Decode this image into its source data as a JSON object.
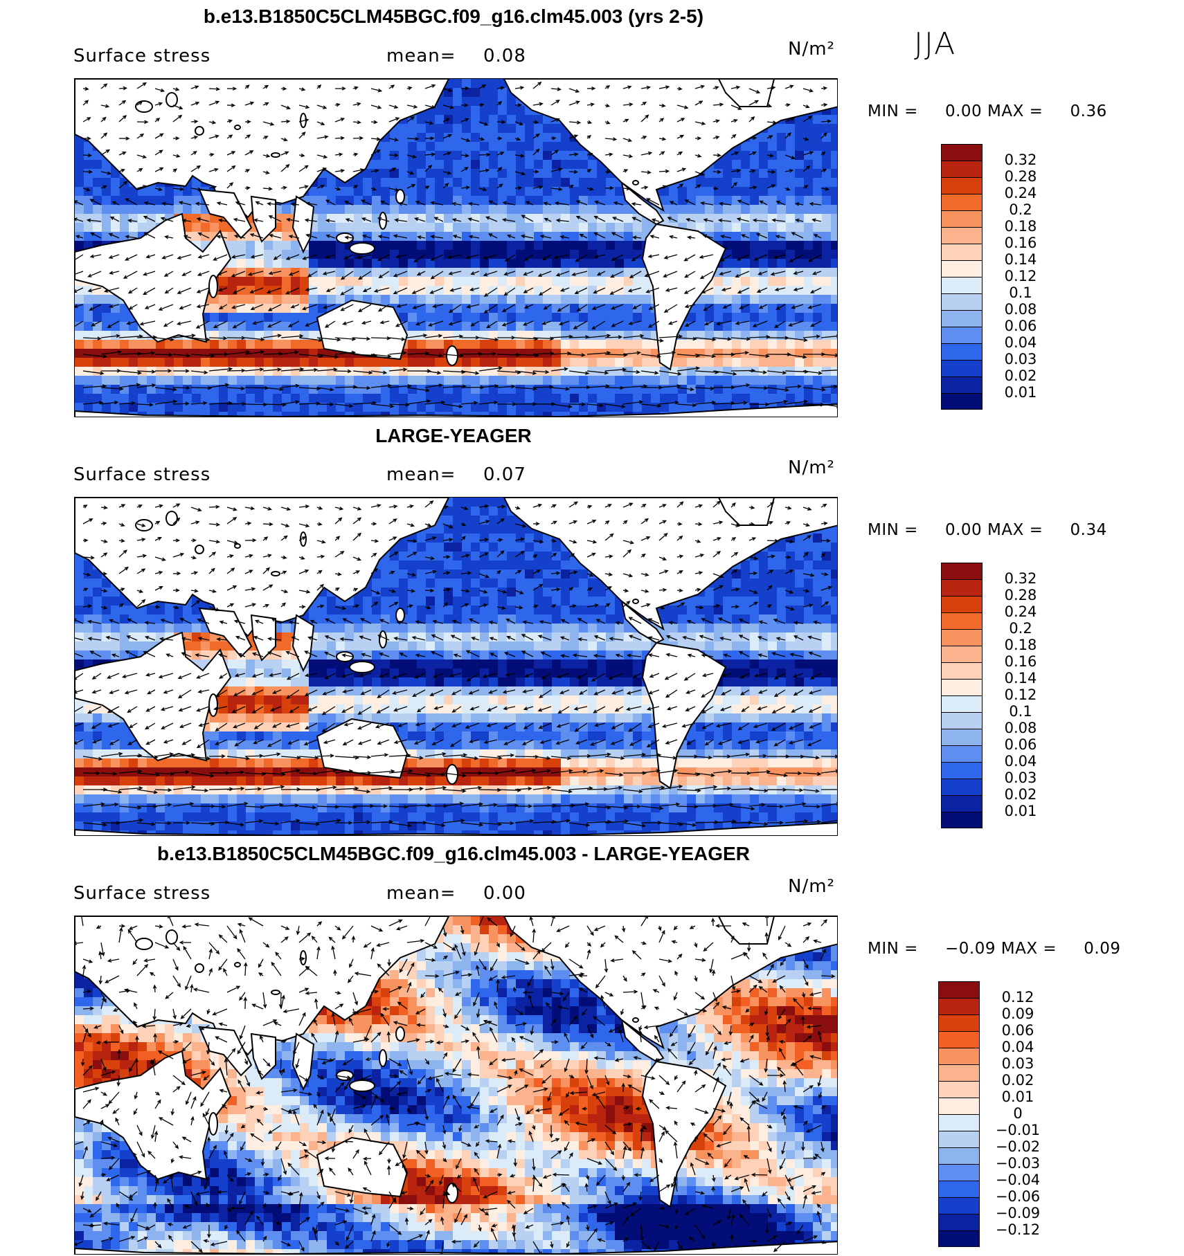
{
  "figure": {
    "season": "JJA",
    "land_color": "#ffffff"
  },
  "panels": [
    {
      "id": "model",
      "title": "b.e13.B1850C5CLM45BGC.f09_g16.clm45.003 (yrs 2-5)",
      "variable": "Surface stress",
      "mean_label": "mean=",
      "mean_value": "0.08",
      "units": "N/m²",
      "min_label": "MIN =",
      "min_value": "0.00",
      "max_label": "MAX =",
      "max_value": "0.36",
      "colorbar": {
        "ticks": [
          "0.32",
          "0.28",
          "0.24",
          "0.2",
          "0.18",
          "0.16",
          "0.14",
          "0.12",
          "0.1",
          "0.08",
          "0.06",
          "0.04",
          "0.03",
          "0.02",
          "0.01"
        ],
        "colors": [
          "#8b0e0e",
          "#b82410",
          "#d8400c",
          "#f06a2a",
          "#f8925e",
          "#fbb38d",
          "#fdd2b9",
          "#fdeee1",
          "#dcebf8",
          "#b8d1f3",
          "#8db4ee",
          "#5e8ff0",
          "#2e66ec",
          "#1440cc",
          "#0b22a3",
          "#020d78"
        ]
      }
    },
    {
      "id": "obs",
      "title": "LARGE-YEAGER",
      "variable": "Surface stress",
      "mean_label": "mean=",
      "mean_value": "0.07",
      "units": "N/m²",
      "min_label": "MIN =",
      "min_value": "0.00",
      "max_label": "MAX =",
      "max_value": "0.34",
      "colorbar": {
        "ticks": [
          "0.32",
          "0.28",
          "0.24",
          "0.2",
          "0.18",
          "0.16",
          "0.14",
          "0.12",
          "0.1",
          "0.08",
          "0.06",
          "0.04",
          "0.03",
          "0.02",
          "0.01"
        ],
        "colors": [
          "#8b0e0e",
          "#b82410",
          "#d8400c",
          "#f06a2a",
          "#f8925e",
          "#fbb38d",
          "#fdd2b9",
          "#fdeee1",
          "#dcebf8",
          "#b8d1f3",
          "#8db4ee",
          "#5e8ff0",
          "#2e66ec",
          "#1440cc",
          "#0b22a3",
          "#020d78"
        ]
      }
    },
    {
      "id": "diff",
      "title": "b.e13.B1850C5CLM45BGC.f09_g16.clm45.003 - LARGE-YEAGER",
      "variable": "Surface stress",
      "mean_label": "mean=",
      "mean_value": "0.00",
      "units": "N/m²",
      "min_label": "MIN =",
      "min_value": "−0.09",
      "max_label": "MAX =",
      "max_value": "0.09",
      "colorbar": {
        "ticks": [
          "0.12",
          "0.09",
          "0.06",
          "0.04",
          "0.03",
          "0.02",
          "0.01",
          "0",
          "−0.01",
          "−0.02",
          "−0.03",
          "−0.04",
          "−0.06",
          "−0.09",
          "−0.12"
        ],
        "colors": [
          "#8b0e0e",
          "#b82410",
          "#d8400c",
          "#f26024",
          "#f8925e",
          "#fbb38d",
          "#fdd2b9",
          "#fdeee1",
          "#dcebf8",
          "#b8d1f3",
          "#8db4ee",
          "#5e8ff0",
          "#2e66ec",
          "#1440cc",
          "#0b22a3",
          "#020d78"
        ]
      }
    }
  ]
}
